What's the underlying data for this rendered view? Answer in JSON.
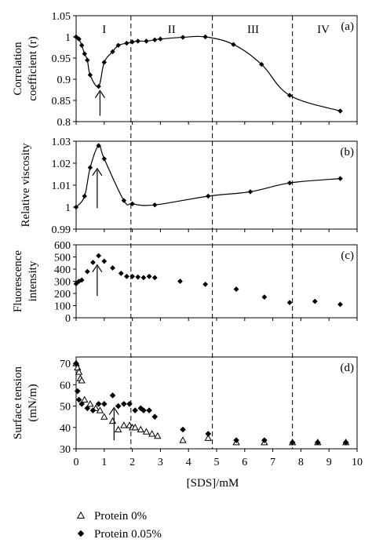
{
  "chart_data": [
    {
      "type": "line",
      "panel_label": "(a)",
      "ylabel_lines": [
        "Correlation",
        "coefficient (r)"
      ],
      "ylim": [
        0.8,
        1.05
      ],
      "yticks": [
        "0.8",
        "0.85",
        "0.9",
        "0.95",
        "1",
        "1.05"
      ],
      "regions": [
        "I",
        "II",
        "III",
        "IV"
      ],
      "x": [
        0,
        0.1,
        0.2,
        0.3,
        0.4,
        0.5,
        0.8,
        1.0,
        1.3,
        1.5,
        1.8,
        2.0,
        2.2,
        2.5,
        2.8,
        3.0,
        3.8,
        4.6,
        5.6,
        6.6,
        7.6,
        9.4
      ],
      "y": [
        1.0,
        0.995,
        0.98,
        0.96,
        0.945,
        0.91,
        0.883,
        0.94,
        0.965,
        0.98,
        0.985,
        0.988,
        0.99,
        0.99,
        0.993,
        0.995,
        0.999,
        1.0,
        0.982,
        0.935,
        0.862,
        0.825
      ],
      "arrow_x": 0.85
    },
    {
      "type": "line",
      "panel_label": "(b)",
      "ylabel_lines": [
        "Relative viscosity"
      ],
      "ylim": [
        0.99,
        1.03
      ],
      "yticks": [
        "0.99",
        "1",
        "1.01",
        "1.02",
        "1.03"
      ],
      "x": [
        0,
        0.3,
        0.5,
        0.8,
        1.0,
        1.7,
        2.0,
        2.8,
        4.7,
        6.2,
        7.6,
        9.4
      ],
      "y": [
        1.0,
        1.005,
        1.018,
        1.028,
        1.022,
        1.003,
        1.0015,
        1.001,
        1.005,
        1.007,
        1.011,
        1.013
      ],
      "arrow_x": 0.75
    },
    {
      "type": "scatter",
      "panel_label": "(c)",
      "ylabel_lines": [
        "Fluorescence",
        "intensity"
      ],
      "ylim": [
        0,
        600
      ],
      "yticks": [
        "0",
        "100",
        "200",
        "300",
        "400",
        "500",
        "600"
      ],
      "x": [
        0,
        0.1,
        0.2,
        0.4,
        0.6,
        0.8,
        1.0,
        1.3,
        1.6,
        1.8,
        2.0,
        2.2,
        2.4,
        2.6,
        2.8,
        3.7,
        4.6,
        5.7,
        6.7,
        7.6,
        8.5,
        9.4
      ],
      "y": [
        280,
        300,
        310,
        380,
        455,
        510,
        465,
        410,
        365,
        340,
        340,
        335,
        330,
        340,
        330,
        300,
        275,
        235,
        170,
        125,
        135,
        110
      ],
      "arrow_x": 0.75
    },
    {
      "type": "scatter",
      "panel_label": "(d)",
      "ylabel_lines": [
        "Surface tension",
        "(mN/m)"
      ],
      "ylim": [
        30,
        73
      ],
      "yticks": [
        "30",
        "40",
        "50",
        "60",
        "70"
      ],
      "xlabel": "[SDS]/mM",
      "xlim": [
        0,
        10
      ],
      "xticks": [
        "0",
        "1",
        "2",
        "3",
        "4",
        "5",
        "6",
        "7",
        "8",
        "9",
        "10"
      ],
      "series": [
        {
          "name": "Protein 0%",
          "marker": "triangle",
          "x": [
            0,
            0.05,
            0.1,
            0.15,
            0.2,
            0.3,
            0.5,
            0.7,
            0.85,
            1.0,
            1.3,
            1.5,
            1.7,
            1.9,
            2.0,
            2.1,
            2.3,
            2.5,
            2.7,
            2.9,
            3.8,
            4.7,
            5.7,
            6.7,
            7.7,
            8.6,
            9.6
          ],
          "y": [
            70,
            68,
            66,
            63,
            62,
            53,
            51,
            49,
            48,
            45,
            43,
            39,
            41,
            41,
            40,
            40,
            39,
            38,
            37,
            36,
            34,
            35,
            33,
            33,
            33,
            33,
            33
          ]
        },
        {
          "name": "Protein 0.05%",
          "marker": "diamond",
          "x": [
            0,
            0.05,
            0.1,
            0.2,
            0.4,
            0.6,
            0.8,
            1.0,
            1.3,
            1.5,
            1.7,
            1.9,
            2.1,
            2.3,
            2.4,
            2.6,
            2.8,
            3.8,
            4.7,
            5.7,
            6.7,
            7.7,
            8.6,
            9.6
          ],
          "y": [
            70,
            57,
            53,
            51,
            49,
            48,
            51,
            51,
            55,
            50,
            51,
            51,
            48,
            49,
            48,
            48,
            45,
            39,
            37,
            34,
            34,
            33,
            33,
            33
          ]
        }
      ],
      "arrow_x": 1.35
    }
  ],
  "dashed_boundaries": [
    1.95,
    4.85,
    7.7
  ]
}
